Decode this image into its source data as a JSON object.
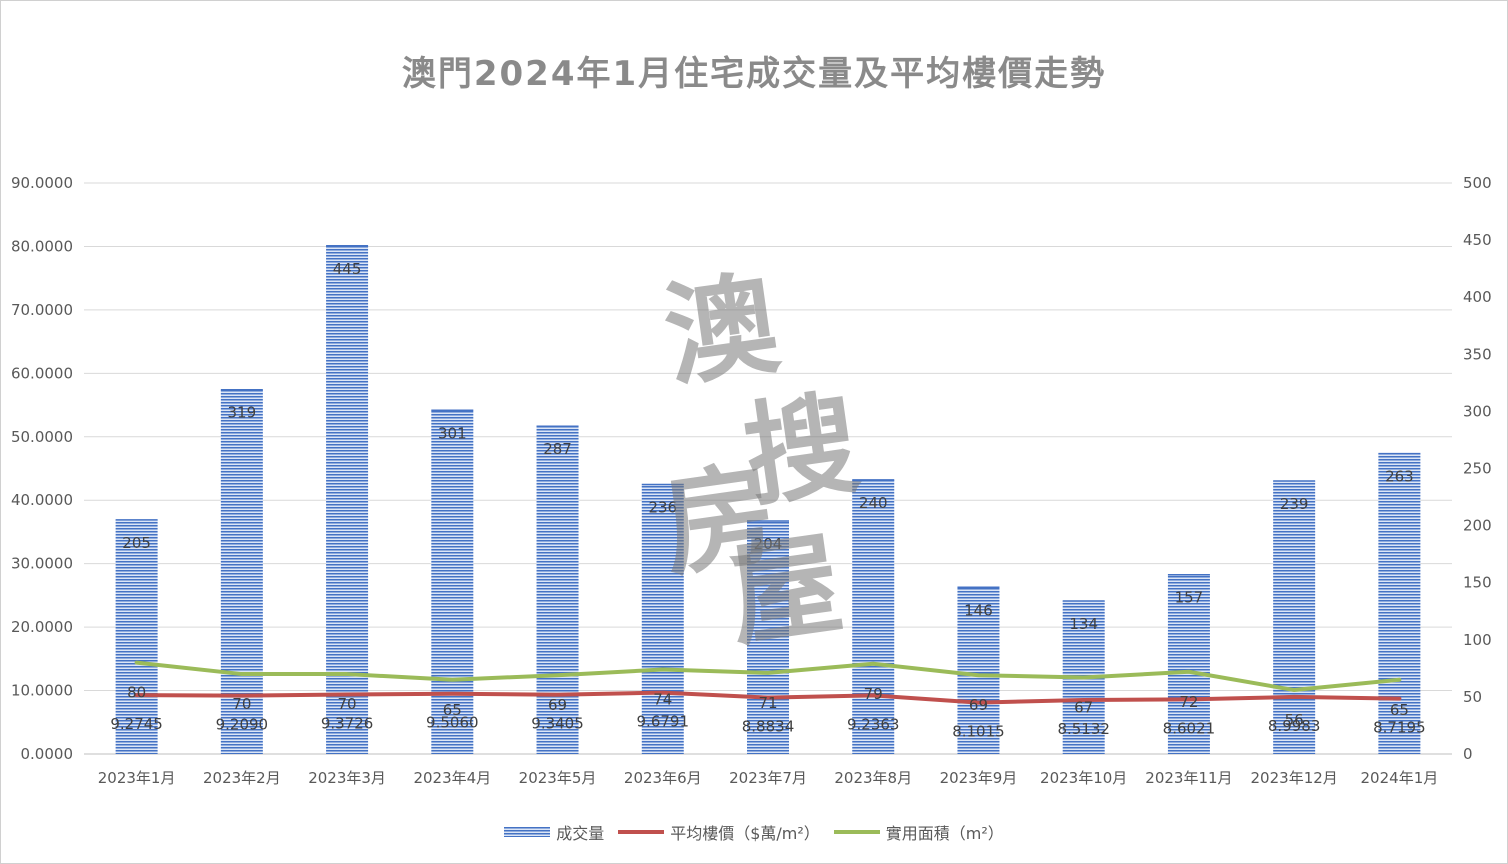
{
  "colors": {
    "bar": "#4472c4",
    "price_line": "#c0504d",
    "area_line": "#9bbb59",
    "grid": "#d9d9d9",
    "title": "#8a8a8a"
  },
  "watermark": [
    "澳",
    "搜",
    "房",
    "屋"
  ],
  "chart_data": {
    "type": "bar",
    "title": "澳門2024年1月住宅成交量及平均樓價走勢",
    "categories": [
      "2023年1月",
      "2023年2月",
      "2023年3月",
      "2023年4月",
      "2023年5月",
      "2023年6月",
      "2023年7月",
      "2023年8月",
      "2023年9月",
      "2023年10月",
      "2023年11月",
      "2023年12月",
      "2024年1月"
    ],
    "left_axis": {
      "ylim": [
        0,
        90
      ],
      "ticks": [
        "0.0000",
        "10.0000",
        "20.0000",
        "30.0000",
        "40.0000",
        "50.0000",
        "60.0000",
        "70.0000",
        "80.0000",
        "90.0000"
      ]
    },
    "right_axis": {
      "ylim": [
        0,
        500
      ],
      "ticks": [
        "0",
        "50",
        "100",
        "150",
        "200",
        "250",
        "300",
        "350",
        "400",
        "450",
        "500"
      ]
    },
    "grid": true,
    "legend_position": "bottom",
    "series": [
      {
        "name": "成交量",
        "kind": "bar",
        "axis": "right",
        "values": [
          205,
          319,
          445,
          301,
          287,
          236,
          204,
          240,
          146,
          134,
          157,
          239,
          263
        ],
        "labels": [
          "205",
          "319",
          "445",
          "301",
          "287",
          "236",
          "204",
          "240",
          "146",
          "134",
          "157",
          "239",
          "263"
        ]
      },
      {
        "name": "平均樓價（$萬/m²）",
        "kind": "line",
        "axis": "left",
        "values": [
          9.2745,
          9.209,
          9.3726,
          9.506,
          9.3405,
          9.6791,
          8.8834,
          9.2363,
          8.1015,
          8.5132,
          8.6021,
          8.9983,
          8.7195
        ],
        "labels": [
          "9.2745",
          "9.2090",
          "9.3726",
          "9.5060",
          "9.3405",
          "9.6791",
          "8.8834",
          "9.2363",
          "8.1015",
          "8.5132",
          "8.6021",
          "8.9983",
          "8.7195"
        ]
      },
      {
        "name": "實用面積（m²）",
        "kind": "line",
        "axis": "right",
        "values": [
          80,
          70,
          70,
          65,
          69,
          74,
          71,
          79,
          69,
          67,
          72,
          56,
          65
        ],
        "labels": [
          "80",
          "70",
          "70",
          "65",
          "69",
          "74",
          "71",
          "79",
          "69",
          "67",
          "72",
          "56",
          "65"
        ]
      }
    ]
  }
}
